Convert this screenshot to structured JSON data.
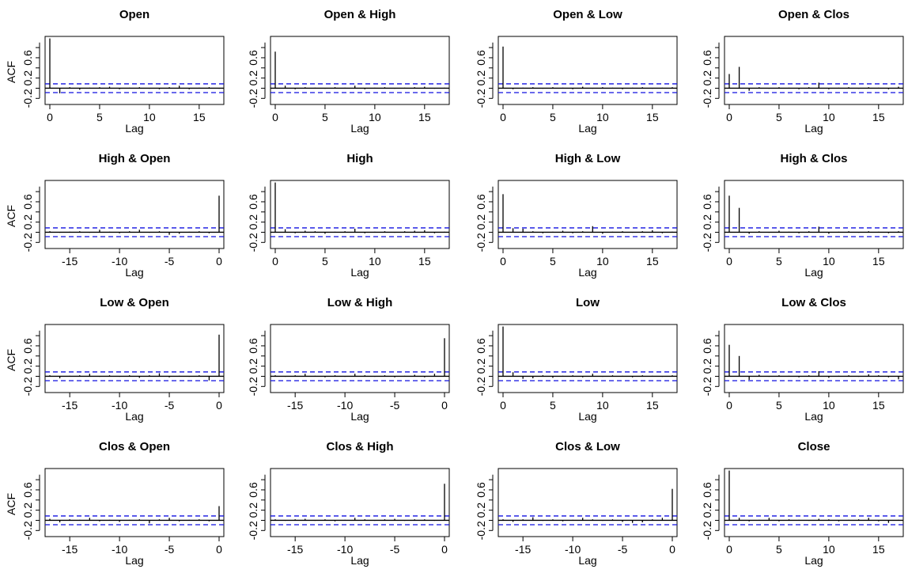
{
  "chart_data": {
    "type": "acf-matrix",
    "ylabel": "ACF",
    "xlabel": "Lag",
    "confidence_bound": 0.086,
    "ylim": [
      -0.32,
      1.02
    ],
    "yticks": [
      -0.2,
      0.2,
      0.6
    ],
    "ytick_labels": [
      "-0.2",
      "0.2",
      "0.6"
    ],
    "series": [
      "Open",
      "High",
      "Low",
      "Close"
    ],
    "panels": [
      {
        "title": "Open",
        "xrange": [
          0,
          17
        ],
        "xticks": [
          0,
          5,
          10,
          15
        ],
        "acf": [
          0.98,
          -0.1,
          0.02,
          -0.03,
          0.01,
          0.02,
          0.03,
          -0.02,
          0.01,
          0.02,
          -0.01,
          -0.02,
          0.02,
          0.05,
          -0.02,
          0.01,
          0.02,
          -0.01
        ]
      },
      {
        "title": "Open & High",
        "xrange": [
          0,
          17
        ],
        "xticks": [
          0,
          5,
          10,
          15
        ],
        "acf": [
          0.72,
          0.05,
          -0.02,
          0.02,
          0.01,
          -0.01,
          0.02,
          0.01,
          0.05,
          -0.02,
          0.01,
          0.02,
          -0.01,
          0.01,
          0.02,
          0.03,
          -0.01,
          0.01
        ]
      },
      {
        "title": "Open & Low",
        "xrange": [
          0,
          17
        ],
        "xticks": [
          0,
          5,
          10,
          15
        ],
        "acf": [
          0.82,
          -0.02,
          0.01,
          0.02,
          -0.01,
          0.02,
          0.01,
          -0.02,
          0.03,
          -0.01,
          0.02,
          0.01,
          -0.02,
          0.01,
          0.02,
          -0.01,
          0.01,
          0.02
        ]
      },
      {
        "title": "Open & Clos",
        "xrange": [
          0,
          17
        ],
        "xticks": [
          0,
          5,
          10,
          15
        ],
        "acf": [
          0.28,
          0.42,
          -0.05,
          0.02,
          -0.01,
          0.02,
          0.01,
          -0.02,
          0.02,
          0.11,
          -0.02,
          0.01,
          0.02,
          -0.01,
          0.02,
          0.01,
          -0.02,
          0.03
        ]
      },
      {
        "title": "High & Open",
        "xrange": [
          -17,
          0
        ],
        "xticks": [
          -15,
          -10,
          -5,
          0
        ],
        "acf": [
          0.02,
          -0.01,
          0.01,
          0.02,
          -0.01,
          0.05,
          0.01,
          -0.02,
          0.02,
          0.05,
          -0.01,
          0.02,
          -0.05,
          -0.03,
          0.01,
          0.02,
          -0.02,
          0.72
        ]
      },
      {
        "title": "High",
        "xrange": [
          0,
          17
        ],
        "xticks": [
          0,
          5,
          10,
          15
        ],
        "acf": [
          0.98,
          0.06,
          -0.02,
          0.03,
          0.02,
          -0.03,
          0.01,
          0.02,
          0.07,
          -0.02,
          0.01,
          0.02,
          -0.01,
          0.02,
          0.03,
          0.04,
          -0.02,
          0.01
        ]
      },
      {
        "title": "High & Low",
        "xrange": [
          0,
          17
        ],
        "xticks": [
          0,
          5,
          10,
          15
        ],
        "acf": [
          0.75,
          0.08,
          0.07,
          0.02,
          -0.02,
          0.01,
          0.03,
          -0.02,
          0.02,
          0.12,
          -0.03,
          0.01,
          0.02,
          -0.01,
          0.02,
          0.04,
          -0.02,
          0.01
        ]
      },
      {
        "title": "High & Clos",
        "xrange": [
          0,
          17
        ],
        "xticks": [
          0,
          5,
          10,
          15
        ],
        "acf": [
          0.72,
          0.48,
          -0.03,
          0.02,
          -0.01,
          0.03,
          0.01,
          -0.02,
          0.02,
          0.11,
          -0.03,
          0.01,
          0.02,
          -0.01,
          0.02,
          0.01,
          -0.02,
          0.02
        ]
      },
      {
        "title": "Low & Open",
        "xrange": [
          -17,
          0
        ],
        "xticks": [
          -15,
          -10,
          -5,
          0
        ],
        "acf": [
          0.02,
          -0.04,
          0.01,
          0.02,
          0.05,
          -0.01,
          0.02,
          -0.01,
          0.02,
          -0.03,
          0.02,
          0.06,
          -0.02,
          0.01,
          -0.01,
          0.02,
          -0.08,
          0.82
        ]
      },
      {
        "title": "Low & High",
        "xrange": [
          -17,
          0
        ],
        "xticks": [
          -15,
          -10,
          -5,
          0
        ],
        "acf": [
          0.02,
          -0.01,
          0.02,
          0.05,
          0.01,
          -0.02,
          0.02,
          -0.01,
          0.05,
          0.02,
          -0.01,
          0.02,
          -0.02,
          0.01,
          0.03,
          -0.02,
          0.05,
          0.75
        ]
      },
      {
        "title": "Low",
        "xrange": [
          0,
          17
        ],
        "xticks": [
          0,
          5,
          10,
          15
        ],
        "acf": [
          0.98,
          0.08,
          -0.05,
          -0.04,
          0.02,
          -0.03,
          0.01,
          0.02,
          -0.02,
          0.05,
          -0.01,
          0.02,
          0.01,
          -0.02,
          0.02,
          0.01,
          -0.01,
          0.02
        ]
      },
      {
        "title": "Low & Clos",
        "xrange": [
          0,
          17
        ],
        "xticks": [
          0,
          5,
          10,
          15
        ],
        "acf": [
          0.62,
          0.4,
          -0.07,
          0.03,
          -0.01,
          0.02,
          0.01,
          -0.02,
          0.02,
          0.1,
          -0.03,
          0.01,
          0.02,
          -0.01,
          0.04,
          0.02,
          -0.02,
          -0.06
        ]
      },
      {
        "title": "Clos & Open",
        "xrange": [
          -17,
          0
        ],
        "xticks": [
          -15,
          -10,
          -5,
          0
        ],
        "acf": [
          0.03,
          -0.04,
          0.02,
          0.01,
          0.05,
          -0.02,
          0.01,
          -0.03,
          0.01,
          0.02,
          -0.06,
          0.02,
          0.05,
          -0.02,
          0.01,
          0.02,
          -0.02,
          0.28
        ]
      },
      {
        "title": "Clos & High",
        "xrange": [
          -17,
          0
        ],
        "xticks": [
          -15,
          -10,
          -5,
          0
        ],
        "acf": [
          0.02,
          -0.01,
          0.02,
          0.03,
          -0.01,
          0.02,
          -0.02,
          0.01,
          0.05,
          0.02,
          -0.01,
          0.02,
          0.03,
          -0.01,
          0.02,
          0.02,
          -0.01,
          0.72
        ]
      },
      {
        "title": "Clos & Low",
        "xrange": [
          -17,
          0
        ],
        "xticks": [
          -15,
          -10,
          -5,
          0
        ],
        "acf": [
          0.02,
          -0.03,
          0.02,
          0.06,
          -0.01,
          0.02,
          -0.02,
          0.01,
          0.05,
          0.02,
          -0.01,
          0.02,
          -0.03,
          -0.05,
          -0.04,
          0.02,
          0.05,
          0.62
        ]
      },
      {
        "title": "Close",
        "xrange": [
          0,
          17
        ],
        "xticks": [
          0,
          5,
          10,
          15
        ],
        "acf": [
          0.98,
          0.05,
          -0.02,
          0.01,
          0.05,
          -0.02,
          0.02,
          0.01,
          -0.01,
          0.03,
          0.02,
          -0.02,
          0.01,
          0.02,
          0.05,
          -0.02,
          -0.05,
          0.01
        ]
      }
    ]
  }
}
